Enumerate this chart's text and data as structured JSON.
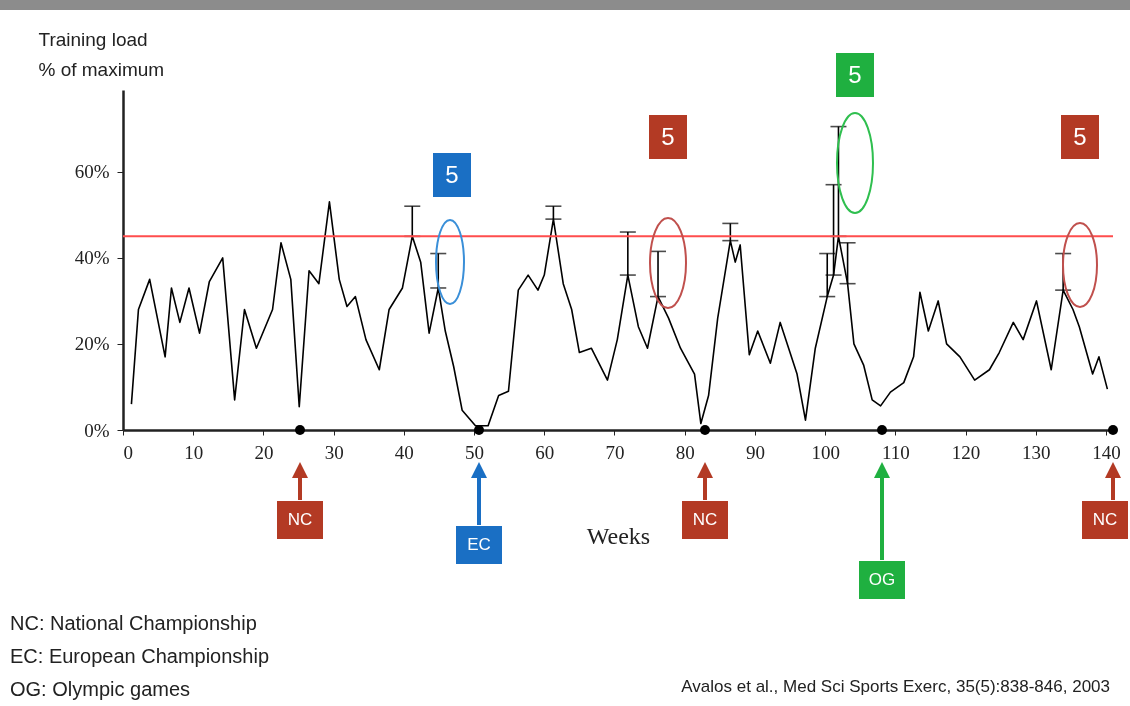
{
  "chart_data": {
    "type": "line",
    "ylabel": "Training load\n% of maximum",
    "xlabel": "Weeks",
    "x": [
      1.2,
      2.2,
      3.8,
      6,
      6.9,
      8.1,
      9.4,
      10.9,
      12.3,
      14.2,
      15.9,
      17.3,
      19,
      21.3,
      22.5,
      23.9,
      25.1,
      26.5,
      27.9,
      29.4,
      30.8,
      31.9,
      33.1,
      34.6,
      36.5,
      37.9,
      39.8,
      41.2,
      42.4,
      43.6,
      44.9,
      45.9,
      47.1,
      48.3,
      50.2,
      52,
      53.5,
      54.9,
      56.3,
      57.7,
      59.1,
      60,
      61.3,
      62.7,
      63.9,
      65,
      66.7,
      69,
      70.4,
      71.9,
      73.4,
      74.7,
      76.2,
      77.7,
      79.4,
      81.4,
      82.3,
      83.4,
      84.7,
      86.5,
      87.2,
      87.9,
      89.2,
      90.4,
      92.2,
      93.6,
      95,
      96,
      97.2,
      98.6,
      100.3,
      101.2,
      101.9,
      103.2,
      104.1,
      105.5,
      106.7,
      107.9,
      109.3,
      111.2,
      112.6,
      113.5,
      114.7,
      116.1,
      117.3,
      119.2,
      121.3,
      123.4,
      124.8,
      126.8,
      128.2,
      130.1,
      132.2,
      133.9,
      135.3,
      136.2,
      138.1,
      139,
      140.2
    ],
    "series": [
      {
        "color": "#000000",
        "values": [
          6,
          28,
          35,
          17,
          33,
          25,
          33,
          22.5,
          34.5,
          40,
          7,
          28,
          19,
          28,
          43.5,
          35,
          5.4,
          37,
          34,
          53,
          35,
          28.7,
          31,
          21,
          14,
          28,
          33,
          45,
          39,
          22.5,
          33,
          23,
          14.7,
          4.6,
          1,
          1,
          8,
          9,
          32.5,
          36,
          32.5,
          36,
          49,
          34,
          28,
          18,
          19,
          11.6,
          21,
          36,
          24,
          19,
          31,
          26,
          19,
          13,
          1.5,
          8,
          26,
          44,
          39,
          43,
          17.5,
          23,
          15.5,
          25,
          18,
          13,
          2.3,
          19,
          31,
          36,
          45,
          34,
          20,
          15,
          7,
          5.6,
          8.8,
          11,
          17,
          32,
          23,
          30,
          20,
          17,
          11.6,
          14,
          18,
          25,
          21,
          30,
          14,
          32.5,
          28,
          24,
          13,
          17,
          9.5
        ],
        "errors": [
          null,
          null,
          null,
          null,
          null,
          null,
          null,
          null,
          null,
          null,
          null,
          null,
          null,
          null,
          null,
          null,
          null,
          null,
          null,
          null,
          null,
          null,
          null,
          null,
          null,
          null,
          null,
          [
            45,
            52
          ],
          null,
          null,
          [
            33,
            41
          ],
          null,
          null,
          null,
          null,
          null,
          null,
          null,
          null,
          null,
          null,
          null,
          [
            49,
            52
          ],
          null,
          null,
          null,
          null,
          null,
          null,
          [
            36,
            46
          ],
          null,
          null,
          [
            31,
            41.5
          ],
          null,
          null,
          null,
          null,
          null,
          null,
          [
            44,
            48
          ],
          null,
          null,
          null,
          null,
          null,
          null,
          null,
          null,
          null,
          null,
          [
            31,
            41
          ],
          [
            36,
            57
          ],
          [
            45,
            70.5
          ],
          [
            34,
            43.5
          ],
          null,
          null,
          null,
          null,
          null,
          null,
          null,
          null,
          null,
          null,
          null,
          null,
          null,
          null,
          null,
          null,
          null,
          null,
          null,
          [
            32.5,
            41
          ],
          null,
          null,
          null,
          null,
          null
        ]
      }
    ],
    "xlim": [
      0,
      141
    ],
    "xticks": [
      0,
      10,
      20,
      30,
      40,
      50,
      60,
      70,
      80,
      90,
      100,
      110,
      120,
      130,
      140
    ],
    "ylim": [
      0,
      79
    ],
    "yticks": [
      {
        "value": 0,
        "label": "0%"
      },
      {
        "value": 20,
        "label": "20%"
      },
      {
        "value": 40,
        "label": "40%"
      },
      {
        "value": 60,
        "label": "60%"
      }
    ],
    "grid": false,
    "ref_lines": [
      {
        "axis": "y",
        "value": 45,
        "color": "#ff4d4d"
      }
    ],
    "annotations": [
      "5",
      "5",
      "5",
      "5",
      "NC",
      "EC",
      "NC",
      "OG",
      "NC",
      "NC: National Championship",
      "EC: European Championship",
      "OG: Olympic games",
      "Avalos et al., Med Sci Sports Exerc, 35(5):838-846, 2003"
    ]
  }
}
